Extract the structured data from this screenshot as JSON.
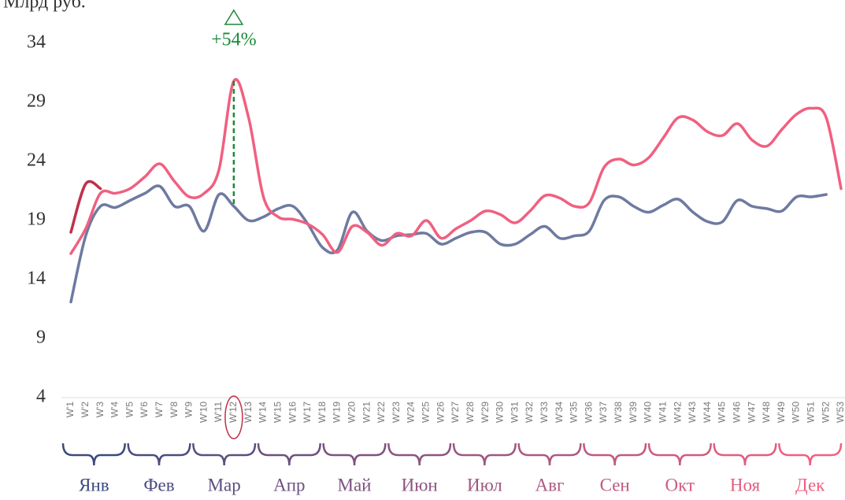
{
  "chart_data": {
    "type": "line",
    "title": "Млрд руб.",
    "categories": [
      "W'1",
      "W'2",
      "W'3",
      "W'4",
      "W'5",
      "W'6",
      "W'7",
      "W'8",
      "W'9",
      "W'10",
      "W'11",
      "W'12",
      "W'13",
      "W'14",
      "W'15",
      "W'16",
      "W'17",
      "W'18",
      "W'19",
      "W'20",
      "W'21",
      "W'22",
      "W'23",
      "W'24",
      "W'25",
      "W'26",
      "W'27",
      "W'28",
      "W'29",
      "W'30",
      "W'31",
      "W'32",
      "W'33",
      "W'34",
      "W'35",
      "W'36",
      "W'37",
      "W'38",
      "W'39",
      "W'40",
      "W'41",
      "W'42",
      "W'43",
      "W'44",
      "W'45",
      "W'46",
      "W'47",
      "W'48",
      "W'49",
      "W'50",
      "W'51",
      "W'52",
      "W'53"
    ],
    "series": [
      {
        "color": "#6e7aa0",
        "values": [
          12.1,
          17.7,
          20.2,
          20.1,
          20.7,
          21.3,
          21.9,
          20.2,
          20.2,
          18.1,
          21.2,
          20.2,
          19.0,
          19.3,
          20.0,
          20.2,
          18.7,
          16.7,
          16.5,
          19.7,
          18.1,
          17.3,
          17.7,
          17.8,
          17.9,
          17.0,
          17.5,
          18.0,
          18.0,
          17.0,
          17.0,
          17.8,
          18.5,
          17.5,
          17.7,
          18.1,
          20.7,
          21.0,
          20.2,
          19.7,
          20.3,
          20.8,
          19.7,
          18.9,
          18.9,
          20.7,
          20.2,
          20.0,
          19.8,
          21.0,
          21.0,
          21.2,
          null
        ]
      },
      {
        "color": "#f06080",
        "values": [
          16.2,
          18.3,
          21.3,
          21.3,
          21.7,
          22.7,
          23.8,
          22.3,
          21.0,
          21.3,
          23.3,
          30.8,
          27.7,
          21.0,
          19.3,
          19.1,
          18.7,
          17.8,
          16.3,
          18.5,
          18.0,
          16.9,
          17.9,
          17.7,
          19.0,
          17.5,
          18.3,
          19.0,
          19.8,
          19.5,
          18.8,
          19.8,
          21.1,
          20.9,
          20.2,
          20.5,
          23.5,
          24.2,
          23.7,
          24.3,
          26.0,
          27.7,
          27.5,
          26.5,
          26.2,
          27.2,
          25.8,
          25.3,
          26.7,
          28.0,
          28.5,
          27.7,
          21.7
        ]
      },
      {
        "color": "#c0304a",
        "values": [
          18.0,
          22.1,
          21.7,
          null,
          null,
          null,
          null,
          null,
          null,
          null,
          null,
          null,
          null,
          null,
          null,
          null,
          null,
          null,
          null,
          null,
          null,
          null,
          null,
          null,
          null,
          null,
          null,
          null,
          null,
          null,
          null,
          null,
          null,
          null,
          null,
          null,
          null,
          null,
          null,
          null,
          null,
          null,
          null,
          null,
          null,
          null,
          null,
          null,
          null,
          null,
          null,
          null,
          null
        ]
      }
    ],
    "ylim": [
      4,
      34
    ],
    "yticks": [
      4,
      9,
      14,
      19,
      24,
      29,
      34
    ],
    "annotation": {
      "text": "+54%",
      "category": "W'12",
      "color": "#1a8a3a"
    },
    "months": [
      "Янв",
      "Фев",
      "Мар",
      "Апр",
      "Май",
      "Июн",
      "Июл",
      "Авг",
      "Сен",
      "Окт",
      "Ноя",
      "Дек"
    ]
  }
}
